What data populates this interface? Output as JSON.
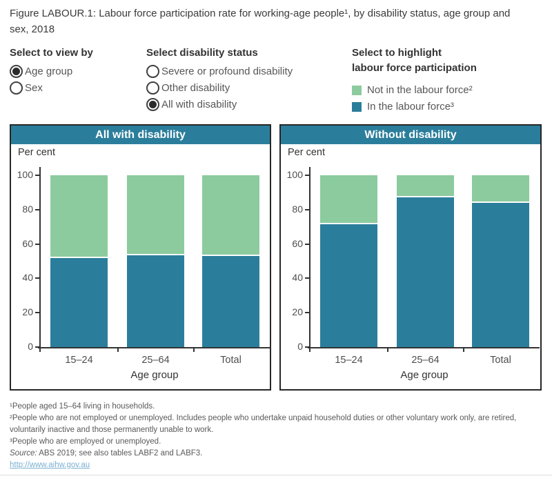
{
  "title": "Figure LABOUR.1: Labour force participation rate for working-age people¹, by disability status, age group and sex, 2018",
  "controls": {
    "view_by": {
      "label": "Select to view by",
      "options": [
        {
          "label": "Age group",
          "selected": true
        },
        {
          "label": "Sex",
          "selected": false
        }
      ]
    },
    "disability_status": {
      "label": "Select disability status",
      "options": [
        {
          "label": "Severe or profound disability",
          "selected": false
        },
        {
          "label": "Other disability",
          "selected": false
        },
        {
          "label": "All with disability",
          "selected": true
        }
      ]
    },
    "highlight": {
      "label_line1": "Select to highlight",
      "label_line2": "labour force participation",
      "items": [
        {
          "label": "Not in the labour force²",
          "color": "#8CCB9E"
        },
        {
          "label": "In the labour force³",
          "color": "#2B7E9B"
        }
      ]
    }
  },
  "colors": {
    "teal": "#2B7E9B",
    "green": "#8CCB9E",
    "header_band": "#2B7E9B"
  },
  "chart_data": [
    {
      "type": "bar",
      "stacked": true,
      "title": "All with disability",
      "unit": "Per cent",
      "xlabel": "Age group",
      "categories": [
        "15–24",
        "25–64",
        "Total"
      ],
      "series": [
        {
          "name": "In the labour force",
          "color": "#2B7E9B",
          "values": [
            52,
            53.5,
            53
          ]
        },
        {
          "name": "Not in the labour force",
          "color": "#8CCB9E",
          "values": [
            48,
            46.5,
            47
          ]
        }
      ],
      "ylim": [
        0,
        100
      ],
      "yticks": [
        0,
        20,
        40,
        60,
        80,
        100
      ],
      "grid": false,
      "legend_position": "top-right-of-figure"
    },
    {
      "type": "bar",
      "stacked": true,
      "title": "Without disability",
      "unit": "Per cent",
      "xlabel": "Age group",
      "categories": [
        "15–24",
        "25–64",
        "Total"
      ],
      "series": [
        {
          "name": "In the labour force",
          "color": "#2B7E9B",
          "values": [
            71.5,
            87,
            84
          ]
        },
        {
          "name": "Not in the labour force",
          "color": "#8CCB9E",
          "values": [
            28.5,
            13,
            16
          ]
        }
      ],
      "ylim": [
        0,
        100
      ],
      "yticks": [
        0,
        20,
        40,
        60,
        80,
        100
      ],
      "grid": false,
      "legend_position": "top-right-of-figure"
    }
  ],
  "footnotes": [
    "¹People aged 15–64 living in households.",
    "²People who are not employed or unemployed. Includes people who undertake unpaid household duties or other voluntary work only, are retired, voluntarily inactive and those permanently unable to work.",
    "³People who are employed or unemployed."
  ],
  "source": {
    "label": "Source:",
    "text": " ABS 2019; see also tables LABF2 and LABF3."
  },
  "link": {
    "text": "http://www.aihw.gov.au"
  }
}
